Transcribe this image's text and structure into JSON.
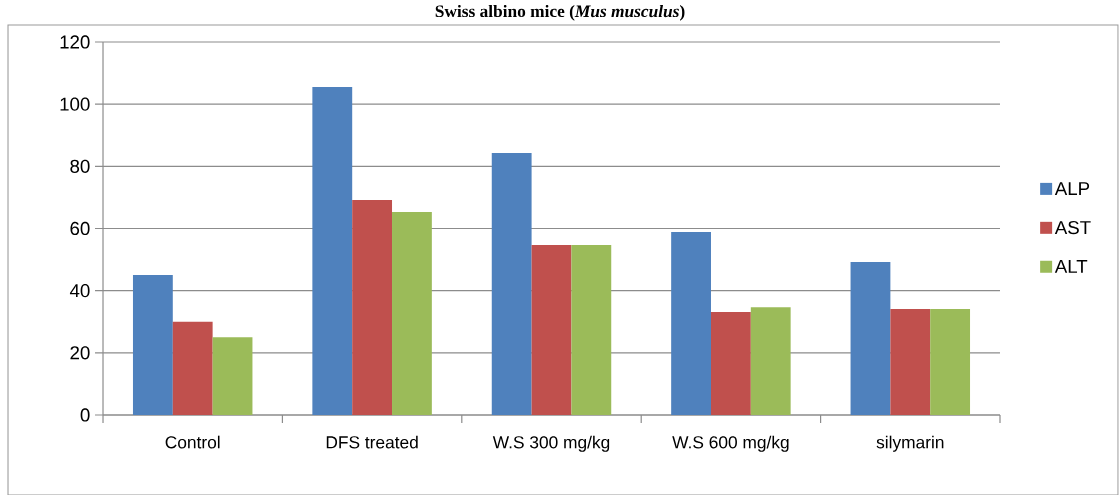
{
  "chart_data": {
    "type": "bar",
    "title": "Swiss albino mice (*Mus musculus*)",
    "categories": [
      "Control",
      "DFS  treated",
      "W.S 300 mg/kg",
      "W.S 600 mg/kg",
      "silymarin"
    ],
    "series": [
      {
        "name": "ALP",
        "color": "#4f81bd",
        "values": [
          45,
          105.5,
          84.3,
          58.9,
          49.2
        ]
      },
      {
        "name": "AST",
        "color": "#c0504d",
        "values": [
          30,
          69.2,
          54.7,
          33.1,
          34.1
        ]
      },
      {
        "name": "ALT",
        "color": "#9bbb59",
        "values": [
          25,
          65.3,
          54.7,
          34.7,
          34.1
        ]
      }
    ],
    "ylim": [
      0,
      120
    ],
    "yticks": [
      0,
      20,
      40,
      60,
      80,
      100,
      120
    ],
    "grid": "y",
    "legend": "right"
  }
}
